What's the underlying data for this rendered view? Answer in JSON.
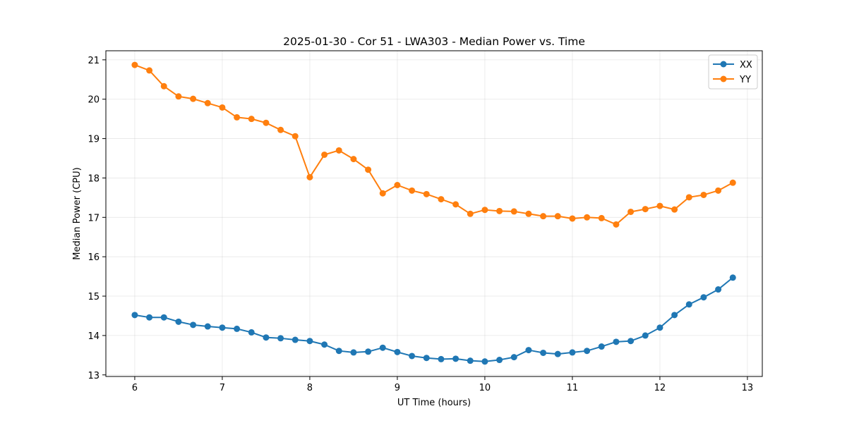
{
  "chart_data": {
    "type": "line",
    "title": "2025-01-30 - Cor 51 - LWA303 - Median Power vs. Time",
    "xlabel": "UT Time (hours)",
    "ylabel": "Median Power (CPU)",
    "xlim": [
      5.67,
      13.17
    ],
    "ylim": [
      12.96,
      21.23
    ],
    "xticks": [
      6,
      7,
      8,
      9,
      10,
      11,
      12,
      13
    ],
    "xtick_labels": [
      "6",
      "7",
      "8",
      "9",
      "10",
      "11",
      "12",
      "13"
    ],
    "yticks": [
      13,
      14,
      15,
      16,
      17,
      18,
      19,
      20,
      21
    ],
    "ytick_labels": [
      "13",
      "14",
      "15",
      "16",
      "17",
      "18",
      "19",
      "20",
      "21"
    ],
    "grid": true,
    "legend_position": "top-right",
    "x": [
      6.0,
      6.1667,
      6.3333,
      6.5,
      6.6667,
      6.8333,
      7.0,
      7.1667,
      7.3333,
      7.5,
      7.6667,
      7.8333,
      8.0,
      8.1667,
      8.3333,
      8.5,
      8.6667,
      8.8333,
      9.0,
      9.1667,
      9.3333,
      9.5,
      9.6667,
      9.8333,
      10.0,
      10.1667,
      10.3333,
      10.5,
      10.6667,
      10.8333,
      11.0,
      11.1667,
      11.3333,
      11.5,
      11.6667,
      11.8333,
      12.0,
      12.1667,
      12.3333,
      12.5,
      12.6667,
      12.8333
    ],
    "series": [
      {
        "name": "XX",
        "color": "#1f77b4",
        "values": [
          14.52,
          14.46,
          14.46,
          14.35,
          14.27,
          14.23,
          14.2,
          14.17,
          14.08,
          13.95,
          13.93,
          13.89,
          13.86,
          13.77,
          13.61,
          13.57,
          13.59,
          13.69,
          13.58,
          13.48,
          13.43,
          13.4,
          13.41,
          13.36,
          13.34,
          13.38,
          13.45,
          13.63,
          13.56,
          13.53,
          13.57,
          13.61,
          13.72,
          13.84,
          13.86,
          14.0,
          14.2,
          14.52,
          14.79,
          14.97,
          15.17,
          15.47
        ]
      },
      {
        "name": "YY",
        "color": "#ff7f0e",
        "values": [
          20.87,
          20.73,
          20.33,
          20.07,
          20.01,
          19.9,
          19.79,
          19.54,
          19.5,
          19.4,
          19.22,
          19.06,
          18.02,
          18.59,
          18.7,
          18.48,
          18.21,
          17.61,
          17.82,
          17.68,
          17.59,
          17.46,
          17.33,
          17.09,
          17.19,
          17.16,
          17.15,
          17.09,
          17.03,
          17.03,
          16.97,
          17.0,
          16.98,
          16.82,
          17.14,
          17.21,
          17.29,
          17.2,
          17.51,
          17.57,
          17.68,
          17.88
        ]
      }
    ]
  }
}
